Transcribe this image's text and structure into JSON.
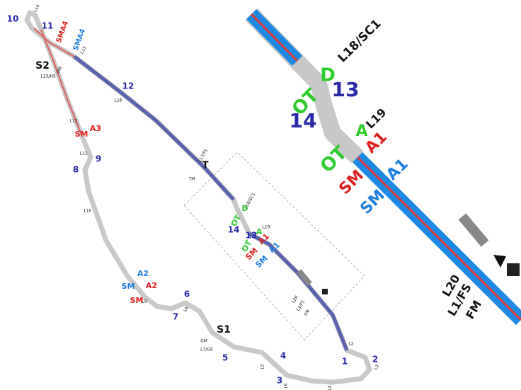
{
  "main_map": {
    "labels": [
      "1",
      "2",
      "3",
      "4",
      "5",
      "6",
      "7",
      "8",
      "9",
      "10",
      "11",
      "12",
      "13",
      "14",
      "S1",
      "S2",
      "T",
      "L1/FS",
      "FM",
      "L20",
      "L2",
      "L3",
      "L4",
      "L5",
      "L6",
      "GM",
      "L7/GS",
      "L8",
      "L9",
      "L10",
      "L11",
      "L12",
      "L13/HS",
      "HM",
      "L14",
      "L15",
      "L16",
      "L17/TS",
      "TM",
      "L18/SC1",
      "L19",
      "OT",
      "D",
      "A",
      "OT",
      "SM",
      "A1",
      "SM",
      "A1",
      "SM",
      "A2",
      "SM",
      "A2",
      "SM",
      "A3",
      "SMA4",
      "SMA4"
    ]
  },
  "detail": {
    "labels": [
      "L18/SC1",
      "OT",
      "D",
      "13",
      "14",
      "A",
      "L19",
      "OT",
      "A1",
      "SM",
      "A1",
      "SM",
      "L20",
      "L1/FS",
      "FM"
    ]
  }
}
